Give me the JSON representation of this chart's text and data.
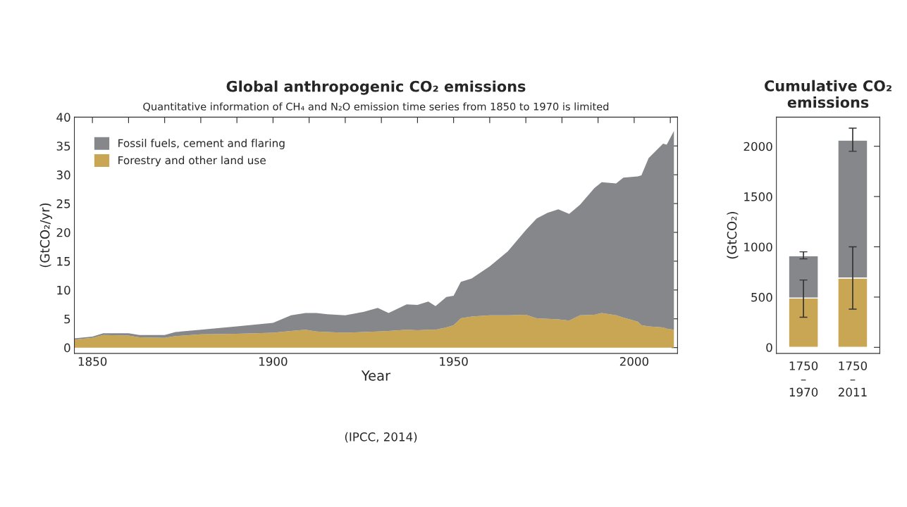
{
  "chart_data": [
    {
      "type": "area",
      "title": "Global anthropogenic CO₂ emissions",
      "subtitle": "Quantitative information of CH₄ and N₂O emission time series from 1850 to 1970 is limited",
      "xlabel": "Year",
      "ylabel": "(GtCO₂/yr)",
      "stacked": true,
      "x": [
        1845,
        1850,
        1853,
        1860,
        1863,
        1870,
        1873,
        1880,
        1890,
        1900,
        1905,
        1909,
        1912,
        1915,
        1920,
        1925,
        1929,
        1932,
        1937,
        1940,
        1943,
        1945,
        1948,
        1950,
        1952,
        1955,
        1960,
        1965,
        1970,
        1973,
        1976,
        1979,
        1982,
        1985,
        1989,
        1991,
        1995,
        1997,
        2001,
        2002,
        2004,
        2008,
        2009,
        2011
      ],
      "series": [
        {
          "name": "Forestry and other land use",
          "color": "#c9a654",
          "values": [
            1.4,
            1.7,
            2.2,
            2.1,
            1.8,
            1.7,
            2.0,
            2.3,
            2.4,
            2.6,
            2.9,
            3.1,
            2.8,
            2.7,
            2.6,
            2.7,
            2.8,
            2.9,
            3.1,
            3.0,
            3.1,
            3.1,
            3.5,
            3.9,
            5.1,
            5.4,
            5.6,
            5.6,
            5.7,
            5.1,
            5.0,
            4.9,
            4.7,
            5.6,
            5.7,
            6.0,
            5.6,
            5.2,
            4.5,
            3.9,
            3.7,
            3.5,
            3.3,
            3.1
          ]
        },
        {
          "name": "Fossil fuels, cement and flaring",
          "color": "#85878a",
          "values": [
            0.2,
            0.2,
            0.3,
            0.4,
            0.4,
            0.5,
            0.7,
            0.8,
            1.3,
            1.7,
            2.7,
            2.9,
            3.2,
            3.1,
            3.0,
            3.5,
            4.1,
            3.1,
            4.4,
            4.4,
            4.9,
            4.1,
            5.3,
            5.1,
            6.3,
            6.6,
            8.5,
            11.1,
            14.7,
            17.3,
            18.4,
            19.1,
            18.5,
            19.2,
            22.0,
            22.7,
            22.9,
            24.3,
            25.2,
            26.0,
            29.2,
            31.9,
            31.9,
            34.5
          ]
        }
      ],
      "xlim": [
        1845,
        2012
      ],
      "xticks": [
        1850,
        {
          "value": 1860,
          "label": null
        },
        {
          "value": 1870,
          "label": null
        },
        {
          "value": 1880,
          "label": null
        },
        {
          "value": 1890,
          "label": null
        },
        1900,
        {
          "value": 1910,
          "label": null
        },
        {
          "value": 1920,
          "label": null
        },
        {
          "value": 1930,
          "label": null
        },
        {
          "value": 1940,
          "label": null
        },
        1950,
        {
          "value": 1960,
          "label": null
        },
        {
          "value": 1970,
          "label": null
        },
        {
          "value": 1980,
          "label": null
        },
        {
          "value": 1990,
          "label": null
        },
        2000,
        {
          "value": 2010,
          "label": null
        }
      ],
      "ylim": [
        -1,
        40
      ],
      "yticks": [
        0,
        5,
        10,
        15,
        20,
        25,
        30,
        35,
        40
      ],
      "legend": "top left",
      "grid": false,
      "annotations": [
        "(IPCC, 2014)"
      ]
    },
    {
      "type": "bar",
      "title": "Cumulative CO₂ emissions",
      "ylabel": "(GtCO₂)",
      "stacked": true,
      "categories": [
        "1750\n–\n1970",
        "1750\n–\n2011"
      ],
      "series": [
        {
          "color": "#c9a654",
          "values": [
            490,
            690
          ],
          "errors": [
            [
              300,
              670
            ],
            [
              380,
              1000
            ]
          ]
        },
        {
          "color": "#85878a",
          "values": [
            420,
            1370
          ],
          "errors": [
            [
              880,
              950
            ],
            [
              1950,
              2180
            ]
          ]
        }
      ],
      "ylim": [
        -60,
        2290
      ],
      "yticks": [
        0,
        500,
        1000,
        1500,
        2000
      ],
      "grid": false
    }
  ]
}
